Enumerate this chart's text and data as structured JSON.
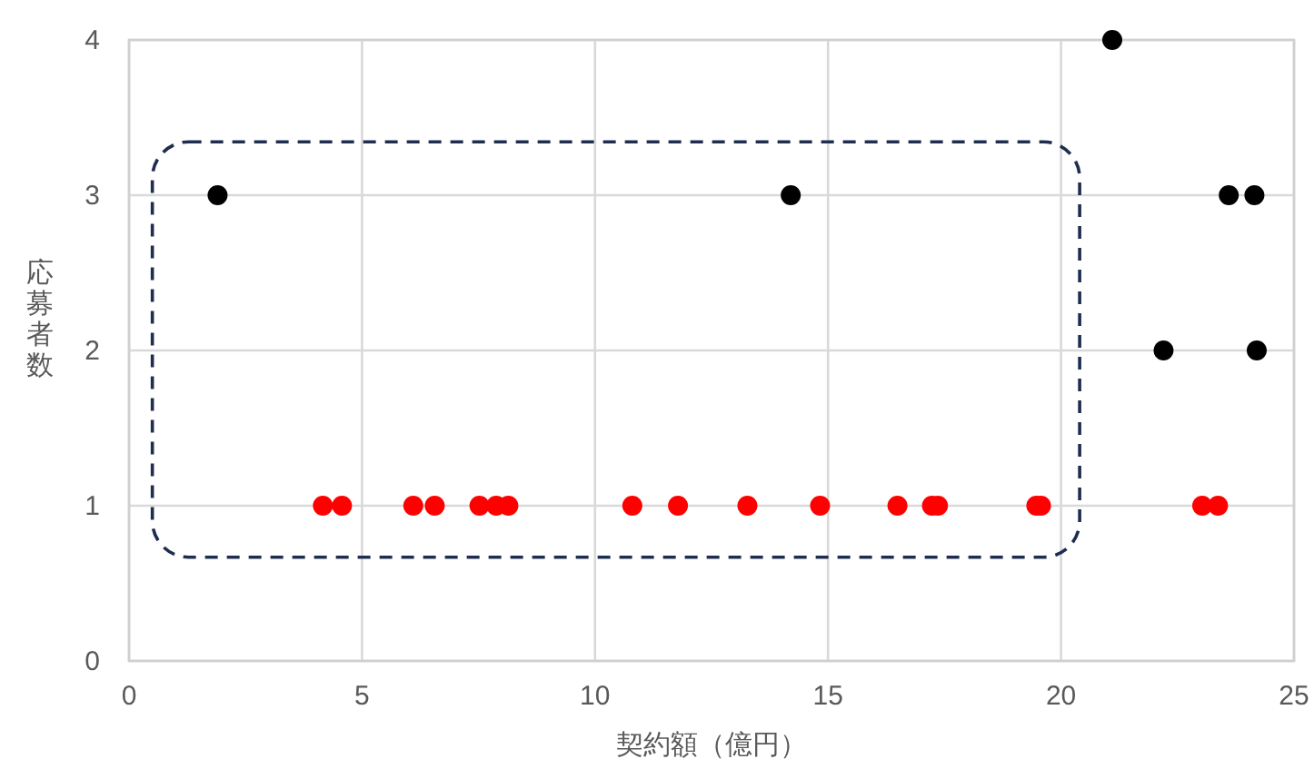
{
  "chart_data": {
    "type": "scatter",
    "xlabel": "契約額（億円）",
    "ylabel": "応募者数",
    "xlim": [
      0,
      25
    ],
    "xticks": [
      0,
      5,
      10,
      15,
      20,
      25
    ],
    "ylim": [
      0,
      4
    ],
    "yticks": [
      0,
      1,
      2,
      3,
      4
    ],
    "grid": true,
    "marker": "circle",
    "series": [
      {
        "color": "#000000",
        "x": [
          1.9,
          14.2,
          21.1,
          23.6,
          24.15,
          22.2,
          24.2
        ],
        "values": [
          3,
          3,
          4,
          3,
          3,
          2,
          2
        ]
      },
      {
        "color": "#ff0000",
        "x": [
          4.16,
          4.57,
          6.1,
          6.56,
          7.52,
          7.88,
          8.14,
          10.8,
          11.78,
          13.27,
          14.83,
          16.49,
          17.23,
          17.36,
          19.47,
          19.57,
          23.03,
          23.37
        ],
        "values": [
          1,
          1,
          1,
          1,
          1,
          1,
          1,
          1,
          1,
          1,
          1,
          1,
          1,
          1,
          1,
          1,
          1,
          1
        ]
      }
    ]
  }
}
